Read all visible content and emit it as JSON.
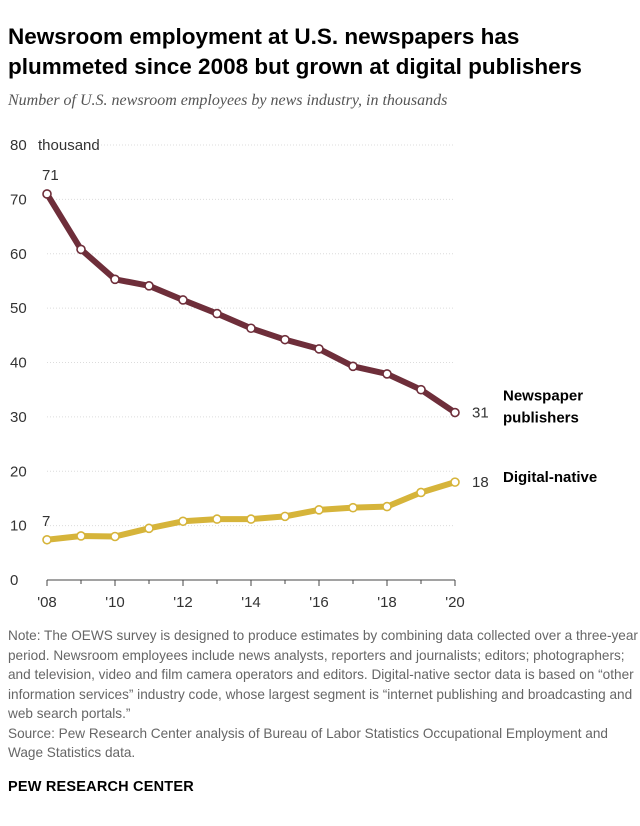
{
  "header": {
    "title": "Newsroom employment at U.S. newspapers has plummeted since 2008 but grown at digital publishers",
    "subtitle": "Number of U.S. newsroom employees by news industry, in thousands"
  },
  "chart_data": {
    "type": "line",
    "x": [
      2008,
      2009,
      2010,
      2011,
      2012,
      2013,
      2014,
      2015,
      2016,
      2017,
      2018,
      2019,
      2020
    ],
    "x_tick_labels": [
      "'08",
      "'10",
      "'12",
      "'14",
      "'16",
      "'18",
      "'20"
    ],
    "x_tick_values": [
      2008,
      2010,
      2012,
      2014,
      2016,
      2018,
      2020
    ],
    "y_ticks": [
      0,
      10,
      20,
      30,
      40,
      50,
      60,
      70,
      80
    ],
    "y_tick_labels": [
      "0",
      "10",
      "20",
      "30",
      "40",
      "50",
      "60",
      "70",
      "80"
    ],
    "y_unit_label": "thousand",
    "ylim": [
      0,
      80
    ],
    "xlim": [
      2008,
      2020
    ],
    "grid": true,
    "series": [
      {
        "name": "Newspaper publishers",
        "color": "#6e2e3a",
        "values": [
          71.0,
          60.8,
          55.3,
          54.1,
          51.5,
          49.0,
          46.3,
          44.2,
          42.5,
          39.3,
          37.9,
          35.0,
          30.8
        ],
        "start_label": "71",
        "end_label": "31"
      },
      {
        "name": "Digital-native",
        "color": "#d6b43a",
        "values": [
          7.4,
          8.1,
          8.0,
          9.5,
          10.8,
          11.2,
          11.2,
          11.7,
          12.9,
          13.3,
          13.5,
          16.1,
          18.0
        ],
        "start_label": "7",
        "end_label": "18"
      }
    ]
  },
  "notes": {
    "note": "Note: The OEWS survey is designed to produce estimates by combining data collected over a three-year period. Newsroom employees include news analysts, reporters and journalists; editors; photographers; and television, video and film camera operators and editors. Digital-native sector data is based on “other information services” industry code, whose largest segment is “internet publishing and broadcasting and web search portals.”",
    "source": "Source: Pew Research Center analysis of Bureau of Labor Statistics Occupational Employment and Wage Statistics data."
  },
  "brand": "PEW RESEARCH CENTER"
}
